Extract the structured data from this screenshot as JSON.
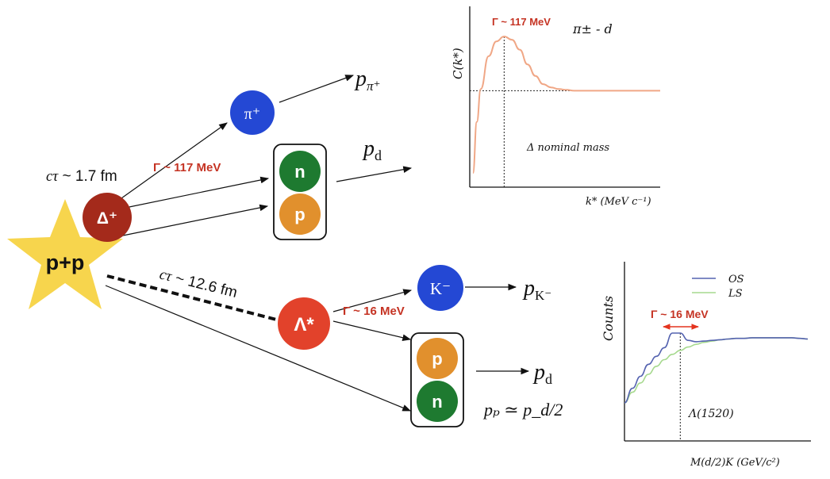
{
  "colors": {
    "delta": "#a42a1b",
    "lambda": "#e2422b",
    "pion": "#2448d4",
    "kaon": "#2448d4",
    "neutron": "#1e7a30",
    "proton": "#e1902d",
    "star": "#f7d54d",
    "gamma_text": "#c53323",
    "cf_curve": "#f0a786",
    "os_curve": "#5563b0",
    "ls_curve": "#a6d98e",
    "arrow_red": "#e4341f"
  },
  "nodes": {
    "pp": "p+p",
    "delta": "Δ⁺",
    "pion": "π⁺",
    "lambda": "Λ*",
    "kaon": "K⁻",
    "n_upper": "n",
    "p_upper": "p",
    "p_lower": "p",
    "n_lower": "n"
  },
  "labels": {
    "ctau_delta_prefix": "cτ",
    "ctau_delta_value": " ~ 1.7 fm",
    "ctau_lambda_prefix": "cτ",
    "ctau_lambda_value": " ~ 12.6 fm",
    "gamma_delta": "Γ ~ 117 MeV",
    "gamma_lambda": "Γ ~ 16 MeV",
    "p_pi_main": "p",
    "p_pi_sub": "π⁺",
    "p_d_upper_main": "p",
    "p_d_upper_sub": "d",
    "p_k_main": "p",
    "p_k_sub": "K⁻",
    "p_d_lower_main": "p",
    "p_d_lower_sub": "d",
    "pp_relation": "pₚ ≃ p_d/2"
  },
  "chart_data": [
    {
      "type": "line",
      "title": "",
      "peak_label": "Γ ~ 117 MeV",
      "series_label": "π± - d",
      "xlabel": "k* (MeV c⁻¹)",
      "ylabel": "C(k*)",
      "annotation": "Δ nominal mass",
      "baseline": 1.0,
      "series": [
        {
          "name": "",
          "x": [
            0,
            5,
            10,
            20,
            30,
            40,
            50,
            60,
            70,
            80,
            90,
            100,
            110,
            120,
            130,
            140,
            150,
            160,
            180,
            200,
            220,
            240
          ],
          "y": [
            0.0,
            0.62,
            1.02,
            1.42,
            1.6,
            1.66,
            1.62,
            1.5,
            1.32,
            1.18,
            1.08,
            1.04,
            1.02,
            1.01,
            1.0,
            1.0,
            1.0,
            1.0,
            1.0,
            1.0,
            1.0,
            1.0
          ]
        }
      ],
      "peak_x": 40
    },
    {
      "type": "line",
      "title": "",
      "peak_label": "Γ ~ 16 MeV",
      "xlabel": "M(d/2)K (GeV/c²)",
      "ylabel": "Counts",
      "annotation": "Λ(1520)",
      "legend": [
        "OS",
        "LS"
      ],
      "legend_position": "top-right",
      "series": [
        {
          "name": "OS",
          "x": [
            0,
            10,
            20,
            30,
            40,
            50,
            60,
            70,
            80,
            90,
            100,
            110,
            120,
            130,
            140,
            150,
            160,
            170,
            180,
            190,
            200,
            210,
            220,
            230
          ],
          "y": [
            0.0,
            0.22,
            0.4,
            0.58,
            0.7,
            0.83,
            1.05,
            1.05,
            0.94,
            0.92,
            0.93,
            0.94,
            0.95,
            0.96,
            0.97,
            0.97,
            0.98,
            0.98,
            0.98,
            0.98,
            0.98,
            0.98,
            0.97,
            0.96
          ]
        },
        {
          "name": "LS",
          "x": [
            0,
            10,
            20,
            30,
            40,
            50,
            60,
            70,
            80,
            90,
            100,
            110,
            120,
            130,
            140,
            150,
            160,
            170,
            180,
            190,
            200,
            210,
            220,
            230
          ],
          "y": [
            0.0,
            0.16,
            0.3,
            0.43,
            0.55,
            0.65,
            0.73,
            0.79,
            0.84,
            0.88,
            0.91,
            0.93,
            0.95,
            0.96,
            0.97,
            0.97,
            0.98,
            0.98,
            0.98,
            0.98,
            0.98,
            0.98,
            0.97,
            0.96
          ]
        }
      ],
      "peak_x": 70
    }
  ]
}
